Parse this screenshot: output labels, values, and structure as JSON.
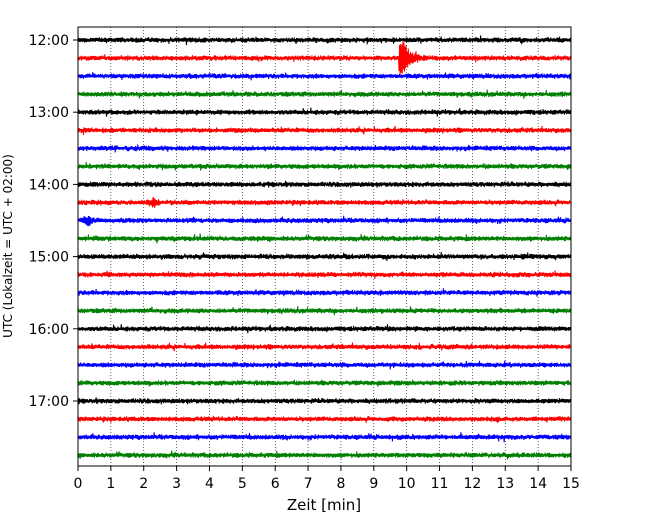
{
  "chart_data": {
    "type": "line",
    "subtype": "helicorder",
    "title": "",
    "xlabel": "Zeit  [min]",
    "ylabel": "UTC (Lokalzeit = UTC + 02:00)",
    "xlim": [
      0,
      15
    ],
    "x_ticks": [
      "0",
      "1",
      "2",
      "3",
      "4",
      "5",
      "6",
      "7",
      "8",
      "9",
      "10",
      "11",
      "12",
      "13",
      "14",
      "15"
    ],
    "y_ticks": [
      "12:00",
      "13:00",
      "14:00",
      "15:00",
      "16:00",
      "17:00"
    ],
    "trace_start": "12:00",
    "trace_interval_min": 15,
    "trace_count": 24,
    "trace_colors": [
      "#000000",
      "#ff0000",
      "#0000ff",
      "#008000"
    ],
    "grid": "vertical dotted",
    "events": [
      {
        "trace": 1,
        "time_min": 9.8,
        "amplitude": "large"
      },
      {
        "trace": 9,
        "time_min": 2.3,
        "amplitude": "small"
      },
      {
        "trace": 10,
        "time_min": 0.3,
        "amplitude": "small"
      }
    ]
  }
}
